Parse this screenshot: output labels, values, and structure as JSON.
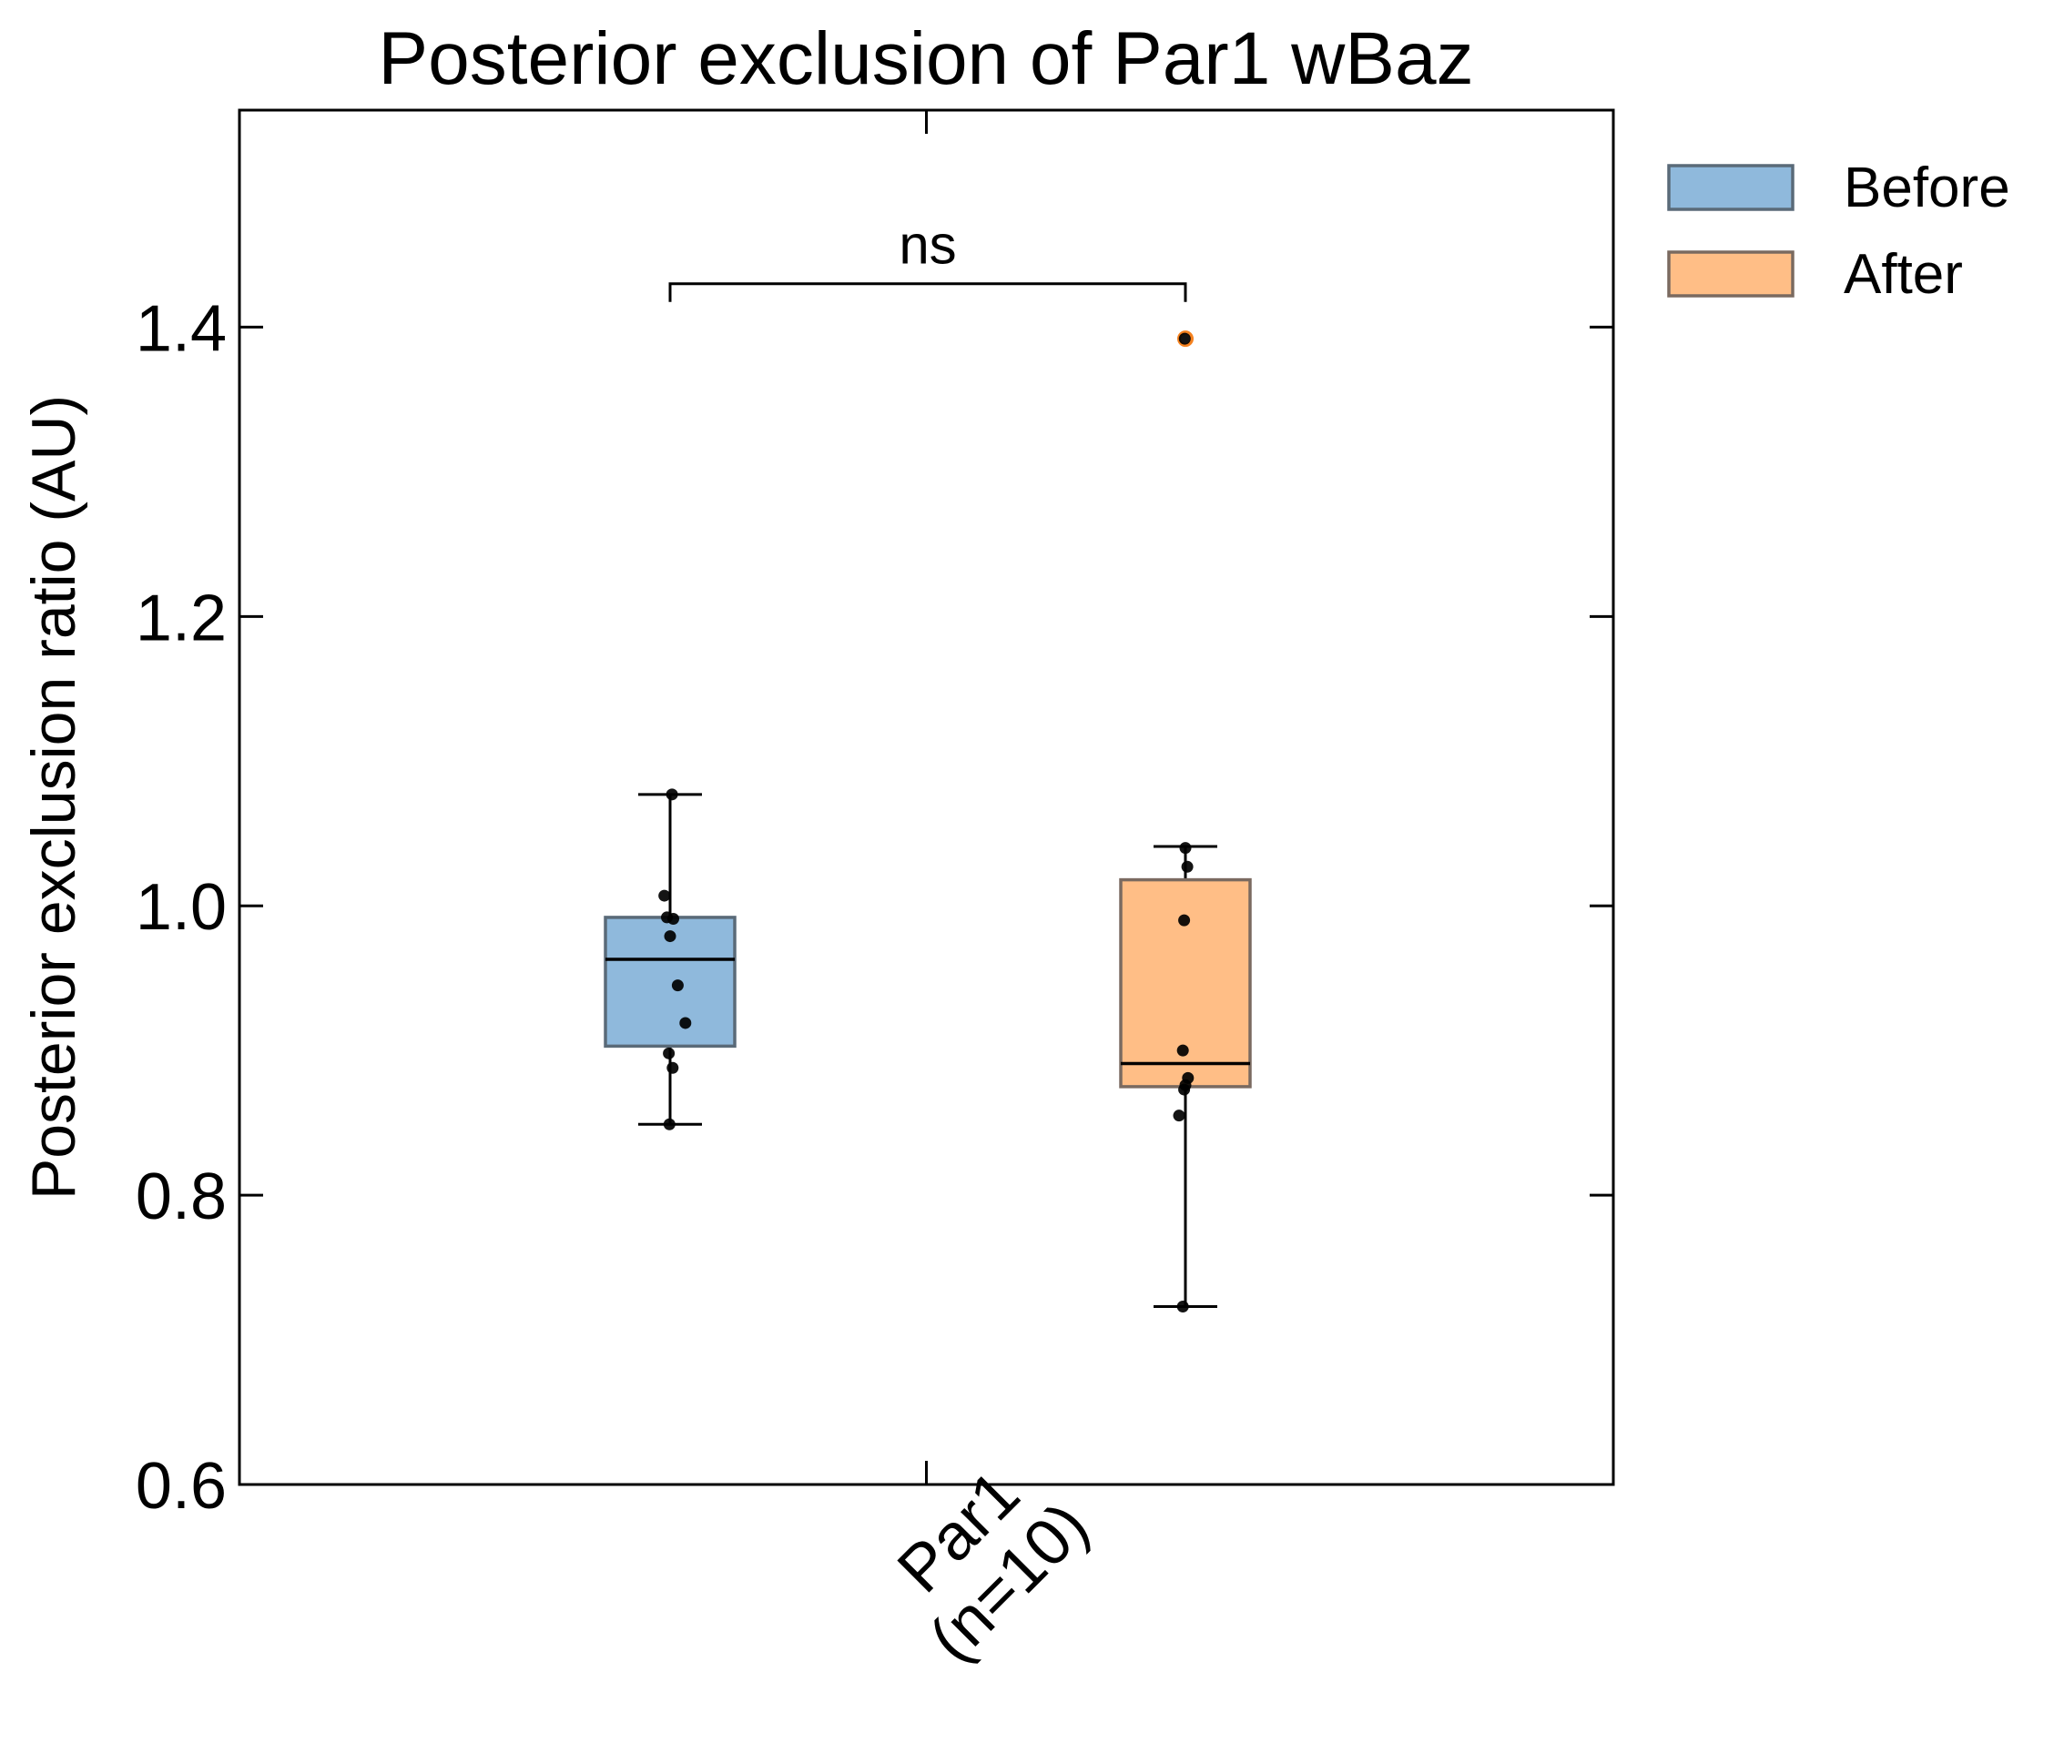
{
  "chart_data": {
    "type": "box",
    "title": "Posterior exclusion of Par1 wBaz",
    "ylabel": "Posterior exclusion ratio (AU)",
    "xlabel": "",
    "ylim": [
      0.6,
      1.55
    ],
    "yticks": [
      0.6,
      0.8,
      1.0,
      1.2,
      1.4
    ],
    "ytick_labels": [
      "0.6",
      "0.8",
      "1.0",
      "1.2",
      "1.4"
    ],
    "categories": [
      "Par1\n(n=10)"
    ],
    "category_lines": [
      "Par1",
      "(n=10)"
    ],
    "legend": {
      "placement": "outside-right-top"
    },
    "significance": {
      "label": "ns",
      "y": 1.43
    },
    "series": [
      {
        "name": "Before",
        "color": "#8fb9dc",
        "edge": "#5a6a78",
        "whisker_low": 0.849,
        "q1": 0.903,
        "median": 0.963,
        "q3": 0.992,
        "whisker_high": 1.077,
        "outliers": [],
        "points": [
          {
            "jitter": 0.03,
            "y": 1.077
          },
          {
            "jitter": -0.09,
            "y": 1.007
          },
          {
            "jitter": -0.05,
            "y": 0.992
          },
          {
            "jitter": 0.05,
            "y": 0.991
          },
          {
            "jitter": 0.0,
            "y": 0.979
          },
          {
            "jitter": 0.12,
            "y": 0.945
          },
          {
            "jitter": 0.24,
            "y": 0.919
          },
          {
            "jitter": -0.02,
            "y": 0.898
          },
          {
            "jitter": 0.04,
            "y": 0.888
          },
          {
            "jitter": -0.01,
            "y": 0.849
          }
        ]
      },
      {
        "name": "After",
        "color": "#ffbe86",
        "edge": "#7a6a60",
        "whisker_low": 0.723,
        "q1": 0.875,
        "median": 0.891,
        "q3": 1.018,
        "whisker_high": 1.041,
        "outliers": [
          1.392
        ],
        "outlier_color": "#f58220",
        "points": [
          {
            "jitter": -0.01,
            "y": 1.392
          },
          {
            "jitter": 0.0,
            "y": 1.04
          },
          {
            "jitter": 0.03,
            "y": 1.027
          },
          {
            "jitter": -0.02,
            "y": 0.99
          },
          {
            "jitter": -0.04,
            "y": 0.9
          },
          {
            "jitter": 0.04,
            "y": 0.881
          },
          {
            "jitter": 0.0,
            "y": 0.876
          },
          {
            "jitter": -0.02,
            "y": 0.873
          },
          {
            "jitter": -0.1,
            "y": 0.855
          },
          {
            "jitter": -0.04,
            "y": 0.723
          }
        ]
      }
    ]
  }
}
